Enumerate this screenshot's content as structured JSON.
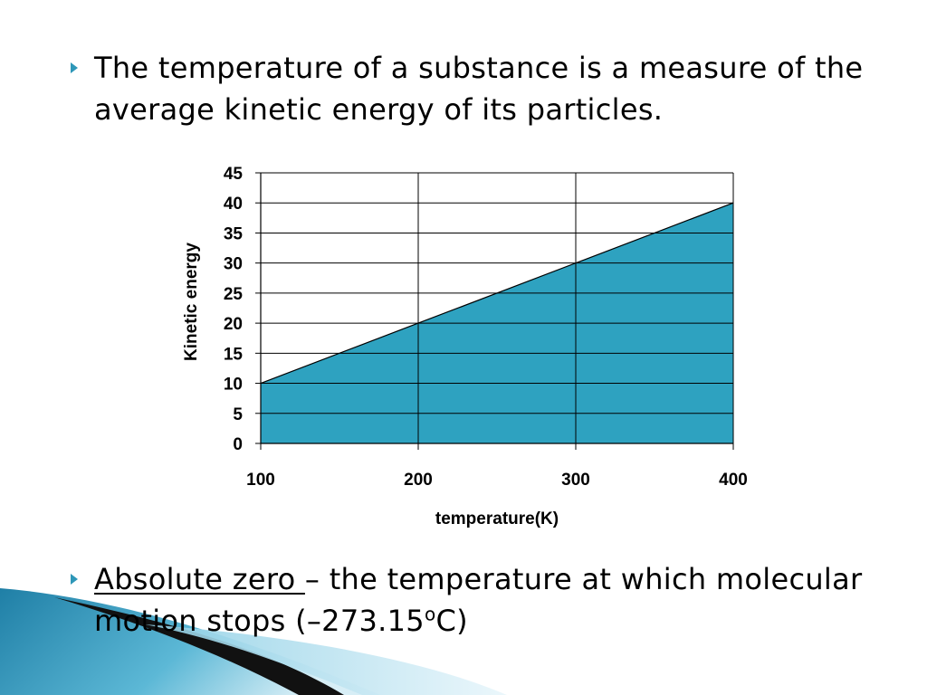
{
  "bullets": [
    {
      "text": "The temperature of a substance is a measure of the average kinetic energy of its particles."
    },
    {
      "term": "Absolute zero ",
      "definition_pre": " – the temperature at which molecular motion stops (–273.15",
      "superscript": "o",
      "definition_post": "C)"
    }
  ],
  "chart_data": {
    "type": "area",
    "x": [
      100,
      200,
      300,
      400
    ],
    "values": [
      10,
      20,
      30,
      40
    ],
    "xlabel": "temperature(K)",
    "ylabel": "Kinetic energy",
    "xlim": [
      100,
      400
    ],
    "ylim": [
      0,
      45
    ],
    "yticks": [
      0,
      5,
      10,
      15,
      20,
      25,
      30,
      35,
      40,
      45
    ],
    "xticks": [
      100,
      200,
      300,
      400
    ],
    "grid": true,
    "fill_color": "#2ea2c0"
  },
  "colors": {
    "accent": "#2e97b8"
  }
}
